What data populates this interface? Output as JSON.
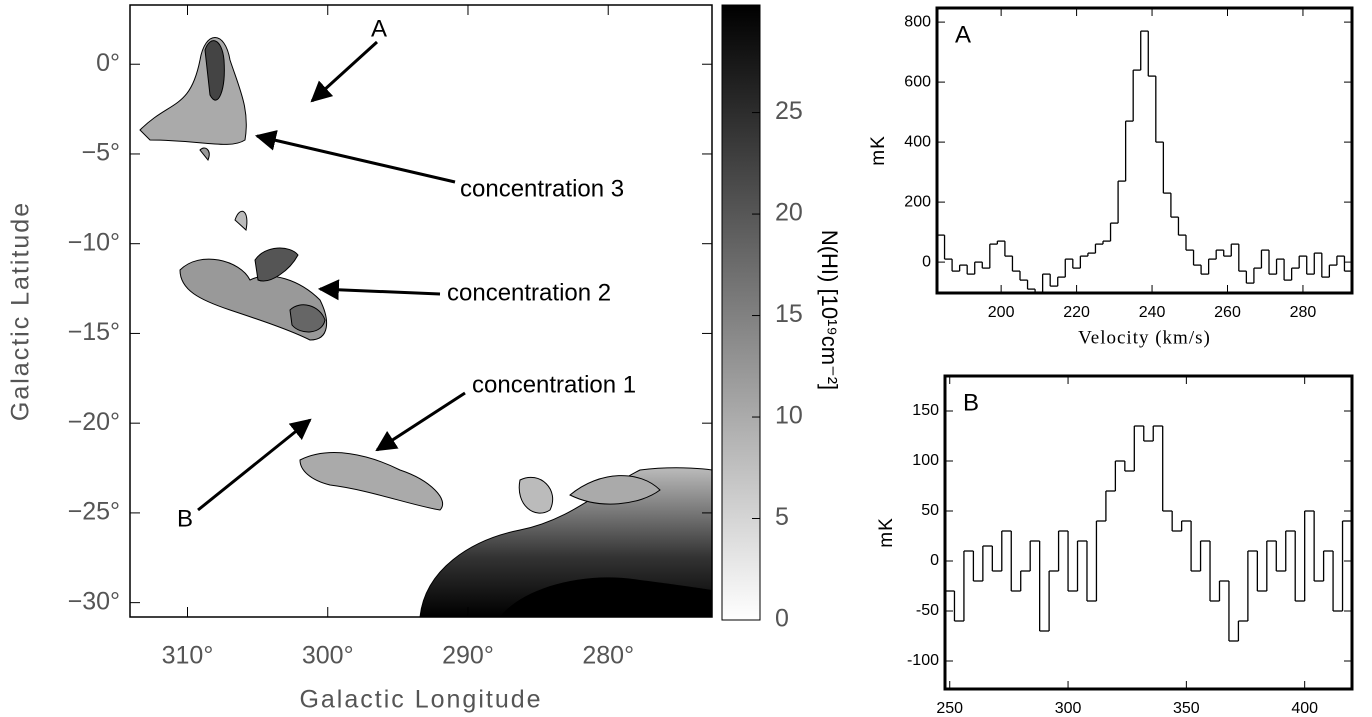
{
  "chart_data": [
    {
      "type": "heatmap",
      "xlabel": "Galactic Longitude",
      "ylabel": "Galactic Latitude",
      "xlim": [
        314.1,
        272.6
      ],
      "xticks": [
        {
          "value": 310,
          "label": "310°"
        },
        {
          "value": 300,
          "label": "300°"
        },
        {
          "value": 290,
          "label": "290°"
        },
        {
          "value": 280,
          "label": "280°"
        }
      ],
      "ylim": [
        -30.8,
        3.3
      ],
      "yticks": [
        {
          "value": 0,
          "label": "0°"
        },
        {
          "value": -5,
          "label": "−5°"
        },
        {
          "value": -10,
          "label": "−10°"
        },
        {
          "value": -15,
          "label": "−15°"
        },
        {
          "value": -20,
          "label": "−20°"
        },
        {
          "value": -25,
          "label": "−25°"
        },
        {
          "value": -30,
          "label": "−30°"
        }
      ],
      "colorbar": {
        "label": "N(HI) [10¹⁹cm⁻²]",
        "lim": [
          0,
          30.3
        ],
        "ticks": [
          0,
          5,
          10,
          15,
          20,
          25
        ]
      },
      "annotations": [
        "A",
        "concentration 3",
        "concentration 2",
        "concentration 1",
        "B"
      ]
    },
    {
      "type": "step",
      "panel": "A",
      "xlabel": "Velocity (km/s)",
      "ylabel": "mK",
      "xlim": [
        183,
        293
      ],
      "xticks": [
        200,
        220,
        240,
        260,
        280
      ],
      "ylim": [
        -103,
        847
      ],
      "yticks": [
        0,
        200,
        400,
        600,
        800
      ],
      "x": [
        184,
        186,
        188,
        190,
        192,
        194,
        196,
        198,
        200,
        202,
        204,
        206,
        208,
        210,
        212,
        214,
        216,
        218,
        220,
        222,
        224,
        226,
        228,
        230,
        232,
        234,
        236,
        238,
        240,
        242,
        244,
        246,
        248,
        250,
        252,
        254,
        256,
        258,
        260,
        262,
        264,
        266,
        268,
        270,
        272,
        274,
        276,
        278,
        280,
        282,
        284,
        286,
        288,
        290,
        292
      ],
      "values": [
        90,
        10,
        -30,
        -10,
        -40,
        0,
        -20,
        60,
        70,
        20,
        -30,
        -60,
        -90,
        -100,
        -40,
        -80,
        -50,
        10,
        -20,
        20,
        30,
        60,
        70,
        130,
        270,
        470,
        640,
        770,
        620,
        400,
        230,
        150,
        90,
        40,
        -10,
        -40,
        10,
        40,
        20,
        60,
        -30,
        -70,
        -20,
        40,
        -40,
        10,
        -60,
        -20,
        20,
        -40,
        30,
        -50,
        -10,
        20,
        -30
      ]
    },
    {
      "type": "step",
      "panel": "B",
      "xlabel": "Velocity (km/s)",
      "ylabel": "mK",
      "xlim": [
        248,
        420
      ],
      "xticks": [
        250,
        300,
        350,
        400
      ],
      "ylim": [
        -128,
        185
      ],
      "yticks": [
        -100,
        -50,
        0,
        50,
        100,
        150
      ],
      "x": [
        250,
        254,
        258,
        262,
        266,
        270,
        274,
        278,
        282,
        286,
        290,
        294,
        298,
        302,
        306,
        310,
        314,
        318,
        322,
        326,
        330,
        334,
        338,
        342,
        346,
        350,
        354,
        358,
        362,
        366,
        370,
        374,
        378,
        382,
        386,
        390,
        394,
        398,
        402,
        406,
        410,
        414,
        418
      ],
      "values": [
        -30,
        -60,
        10,
        -20,
        15,
        -10,
        30,
        -30,
        -10,
        20,
        -70,
        -10,
        30,
        -30,
        20,
        -40,
        40,
        70,
        100,
        90,
        135,
        120,
        135,
        50,
        30,
        40,
        -10,
        20,
        -40,
        -20,
        -80,
        -60,
        10,
        -30,
        20,
        -10,
        30,
        -40,
        50,
        -20,
        10,
        -50,
        40
      ]
    }
  ]
}
